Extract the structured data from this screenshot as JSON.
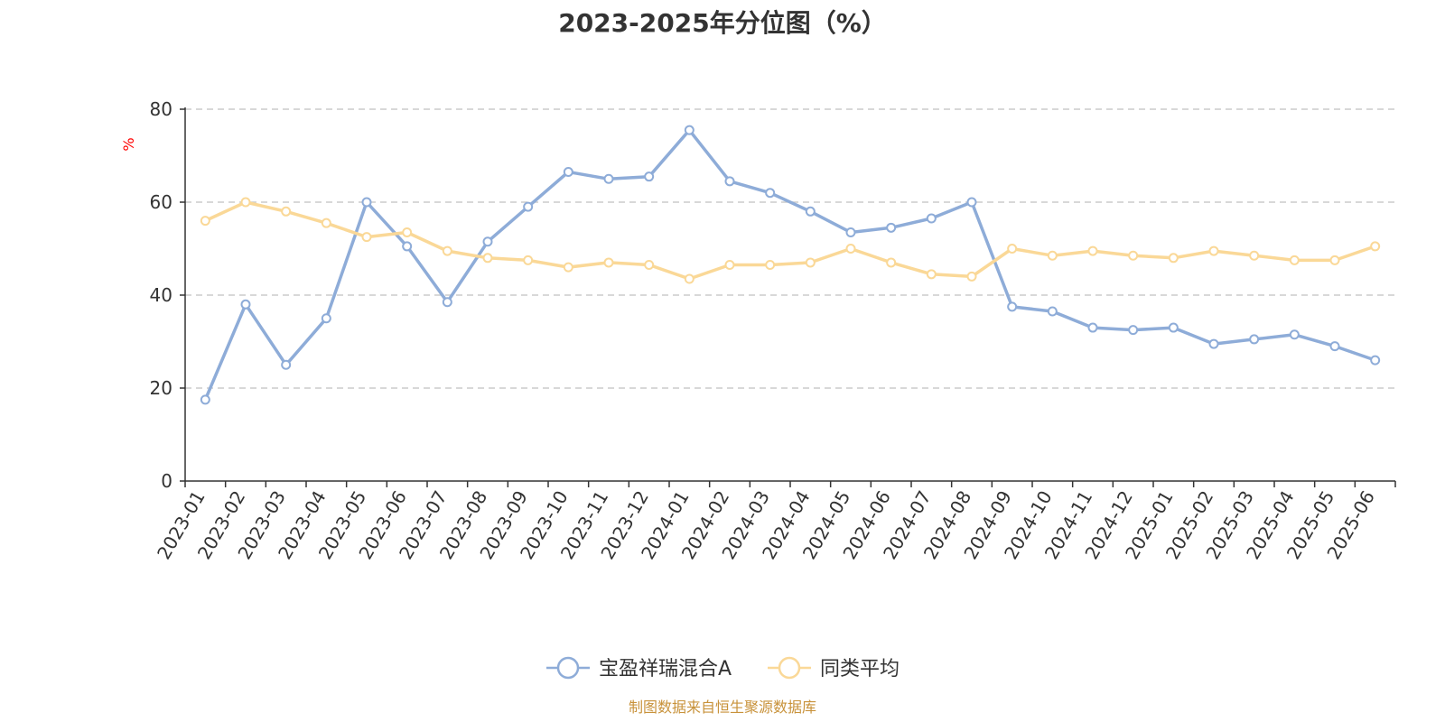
{
  "chart_data": {
    "type": "line",
    "title": "2023-2025年分位图（%）",
    "ylabel": "%",
    "xlabel": "",
    "ylim": [
      0,
      80
    ],
    "yticks": [
      0,
      20,
      40,
      60,
      80
    ],
    "grid": true,
    "legend_position": "bottom",
    "categories": [
      "2023-01",
      "2023-02",
      "2023-03",
      "2023-04",
      "2023-05",
      "2023-06",
      "2023-07",
      "2023-08",
      "2023-09",
      "2023-10",
      "2023-11",
      "2023-12",
      "2024-01",
      "2024-02",
      "2024-03",
      "2024-04",
      "2024-05",
      "2024-06",
      "2024-07",
      "2024-08",
      "2024-09",
      "2024-10",
      "2024-11",
      "2024-12",
      "2025-01",
      "2025-02",
      "2025-03",
      "2025-04",
      "2025-05",
      "2025-06"
    ],
    "series": [
      {
        "name": "宝盈祥瑞混合A",
        "color": "#8eacd8",
        "values": [
          17.5,
          38,
          25,
          35,
          60,
          50.5,
          38.5,
          51.5,
          59,
          66.5,
          65,
          65.5,
          75.5,
          64.5,
          62,
          58,
          53.5,
          54.5,
          56.5,
          60,
          37.5,
          36.5,
          33,
          32.5,
          33,
          29.5,
          30.5,
          31.5,
          29,
          26
        ]
      },
      {
        "name": "同类平均",
        "color": "#fad897",
        "values": [
          56,
          60,
          58,
          55.5,
          52.5,
          53.5,
          49.5,
          48,
          47.5,
          46,
          47,
          46.5,
          43.5,
          46.5,
          46.5,
          47,
          50,
          47,
          44.5,
          44,
          50,
          48.5,
          49.5,
          48.5,
          48,
          49.5,
          48.5,
          47.5,
          47.5,
          50.5
        ]
      }
    ]
  },
  "source_note": "制图数据来自恒生聚源数据库"
}
